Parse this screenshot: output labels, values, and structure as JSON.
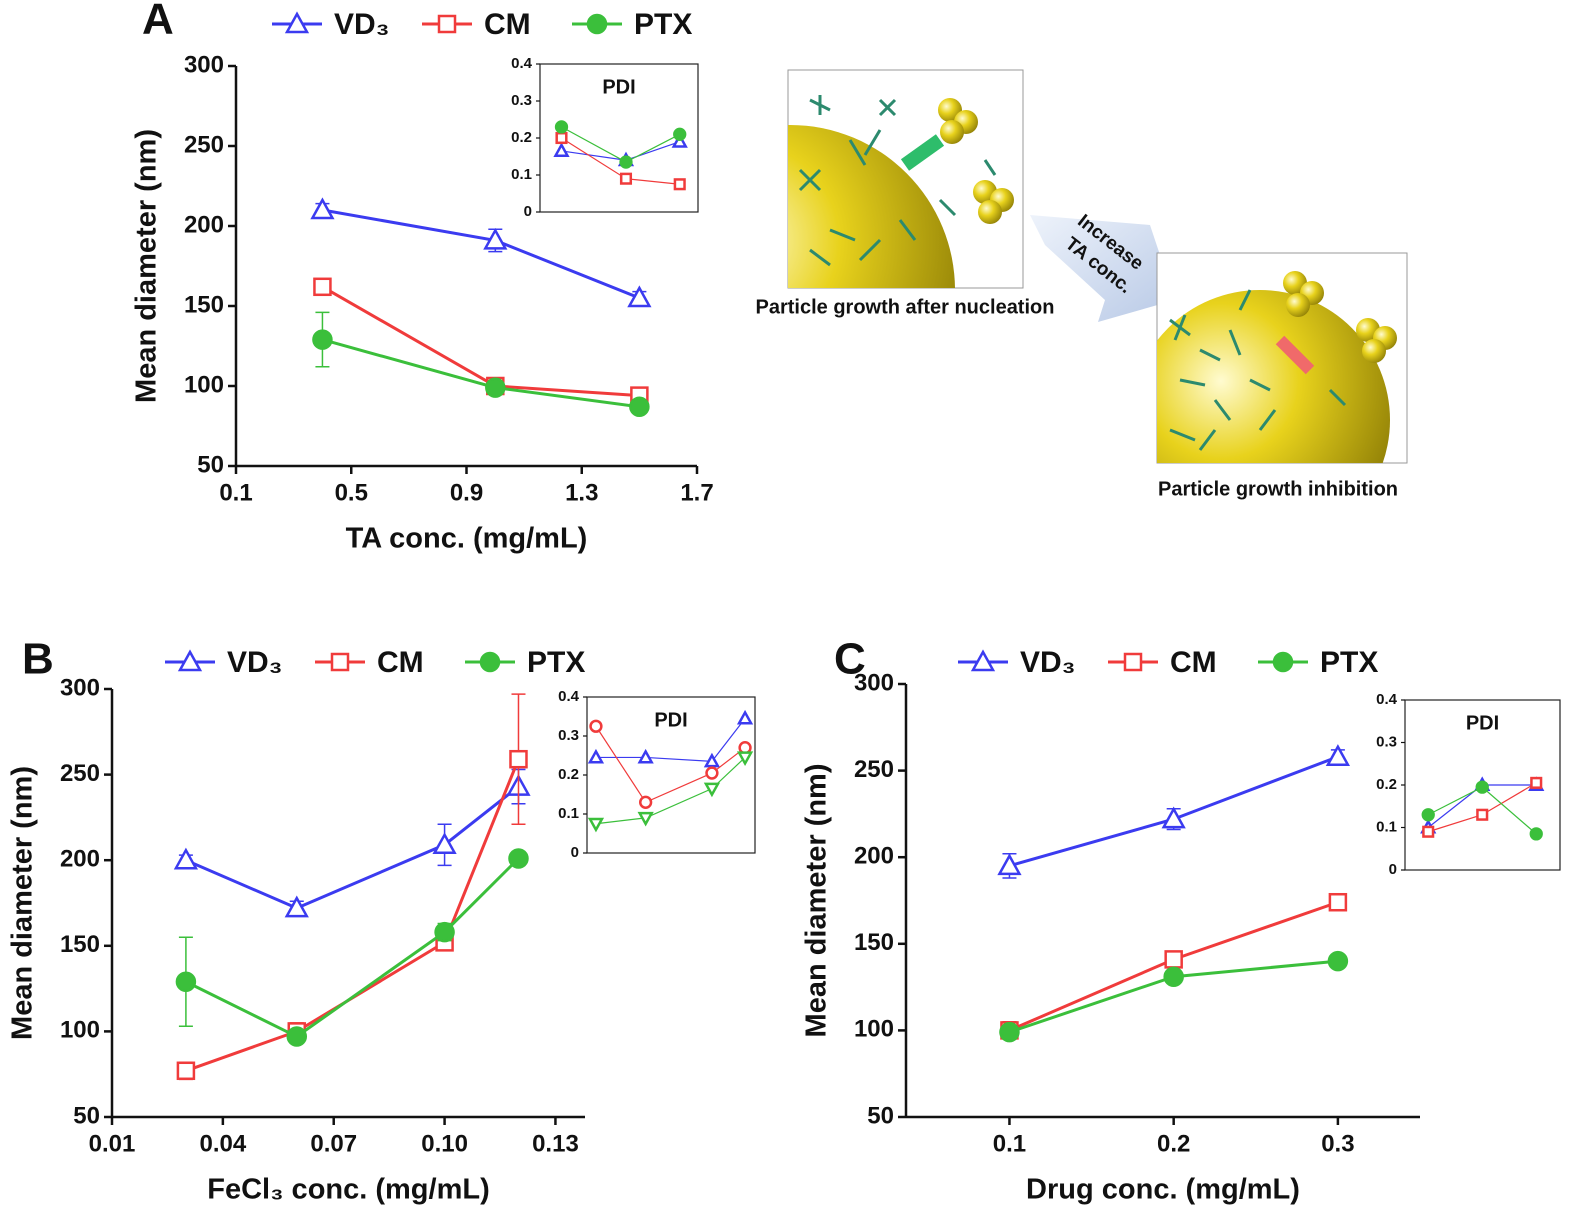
{
  "chart_data": [
    {
      "type": "line",
      "panel": "A",
      "xlabel": "TA conc. (mg/mL)",
      "ylabel": "Mean diameter (nm)",
      "x": [
        0.4,
        1.0,
        1.5
      ],
      "xlim": [
        0.1,
        1.7
      ],
      "xticks": [
        0.1,
        0.5,
        0.9,
        1.3,
        1.7
      ],
      "ylim": [
        50,
        300
      ],
      "yticks": [
        50,
        100,
        150,
        200,
        250,
        300
      ],
      "series": [
        {
          "name": "VD₃",
          "color": "#3b3bf0",
          "marker": "triangle-up",
          "filled": false,
          "values": [
            210,
            191,
            155
          ],
          "errors": [
            4,
            7,
            4
          ]
        },
        {
          "name": "CM",
          "color": "#f03b3b",
          "marker": "square",
          "filled": false,
          "values": [
            162,
            100,
            94
          ],
          "errors": [
            4,
            5,
            3
          ]
        },
        {
          "name": "PTX",
          "color": "#3bbf3b",
          "marker": "circle",
          "filled": true,
          "values": [
            129,
            99,
            87
          ],
          "errors": [
            17,
            3,
            3
          ]
        }
      ]
    },
    {
      "type": "line",
      "title": "PDI",
      "x": [
        0.4,
        1.0,
        1.5
      ],
      "xlim": [
        0.2,
        1.67
      ],
      "ylim": [
        0,
        0.4
      ],
      "yticks": [
        0,
        0.1,
        0.2,
        0.3,
        0.4
      ],
      "series": [
        {
          "color": "#3b3bf0",
          "marker": "triangle-up",
          "filled": false,
          "values": [
            0.165,
            0.14,
            0.19
          ]
        },
        {
          "color": "#f03b3b",
          "marker": "square",
          "filled": false,
          "values": [
            0.2,
            0.09,
            0.075
          ]
        },
        {
          "color": "#3bbf3b",
          "marker": "circle",
          "filled": true,
          "values": [
            0.23,
            0.135,
            0.21
          ]
        }
      ]
    },
    {
      "type": "line",
      "panel": "B",
      "xlabel": "FeCl₃ conc. (mg/mL)",
      "ylabel": "Mean diameter (nm)",
      "x": [
        0.03,
        0.06,
        0.1,
        0.12
      ],
      "xlim": [
        0.01,
        0.138
      ],
      "xticks": [
        {
          "value": 0.01,
          "label": "0.01"
        },
        {
          "value": 0.04,
          "label": "0.04"
        },
        {
          "value": 0.07,
          "label": "0.07"
        },
        {
          "value": 0.1,
          "label": "0.10"
        },
        {
          "value": 0.13,
          "label": "0.13"
        }
      ],
      "ylim": [
        50,
        300
      ],
      "yticks": [
        50,
        100,
        150,
        200,
        250,
        300
      ],
      "series": [
        {
          "name": "VD₃",
          "color": "#3b3bf0",
          "marker": "triangle-up",
          "filled": false,
          "values": [
            200,
            172,
            209,
            243
          ],
          "errors": [
            3,
            4,
            12,
            10
          ]
        },
        {
          "name": "CM",
          "color": "#f03b3b",
          "marker": "square",
          "filled": false,
          "values": [
            77,
            100,
            152,
            259
          ],
          "errors": [
            5,
            5,
            3,
            38
          ]
        },
        {
          "name": "PTX",
          "color": "#3bbf3b",
          "marker": "circle",
          "filled": true,
          "values": [
            129,
            97,
            158,
            201
          ],
          "errors": [
            26,
            3,
            5,
            4
          ]
        }
      ]
    },
    {
      "type": "line",
      "title": "PDI",
      "x": [
        0.03,
        0.06,
        0.1,
        0.12
      ],
      "xlim": [
        0.0246,
        0.126
      ],
      "ylim": [
        0,
        0.4
      ],
      "yticks": [
        0,
        0.1,
        0.2,
        0.3,
        0.4
      ],
      "series": [
        {
          "color": "#3b3bf0",
          "marker": "triangle-up",
          "filled": false,
          "values": [
            0.245,
            0.245,
            0.235,
            0.345
          ]
        },
        {
          "color": "#f03b3b",
          "marker": "circle",
          "filled": false,
          "values": [
            0.325,
            0.13,
            0.205,
            0.27
          ]
        },
        {
          "color": "#3bbf3b",
          "marker": "triangle-down",
          "filled": false,
          "values": [
            0.075,
            0.09,
            0.165,
            0.245
          ]
        }
      ]
    },
    {
      "type": "line",
      "panel": "C",
      "xlabel": "Drug conc. (mg/mL)",
      "ylabel": "Mean diameter (nm)",
      "x": [
        0.1,
        0.2,
        0.3
      ],
      "xlim": [
        0.037,
        0.35
      ],
      "xticks": [
        0.1,
        0.2,
        0.3
      ],
      "ylim": [
        50,
        300
      ],
      "yticks": [
        50,
        100,
        150,
        200,
        250,
        300
      ],
      "series": [
        {
          "name": "VD₃",
          "color": "#3b3bf0",
          "marker": "triangle-up",
          "filled": false,
          "values": [
            195,
            222,
            258
          ],
          "errors": [
            7,
            6,
            4
          ]
        },
        {
          "name": "CM",
          "color": "#f03b3b",
          "marker": "square",
          "filled": false,
          "values": [
            100,
            141,
            174
          ],
          "errors": [
            5,
            3,
            2
          ]
        },
        {
          "name": "PTX",
          "color": "#3bbf3b",
          "marker": "circle",
          "filled": true,
          "values": [
            99,
            131,
            140
          ],
          "errors": [
            3,
            3,
            2
          ]
        }
      ]
    },
    {
      "type": "line",
      "title": "PDI",
      "x": [
        0.1,
        0.2,
        0.3
      ],
      "xlim": [
        0.057,
        0.344
      ],
      "ylim": [
        0,
        0.4
      ],
      "yticks": [
        0,
        0.1,
        0.2,
        0.3,
        0.4
      ],
      "series": [
        {
          "color": "#3b3bf0",
          "marker": "triangle-up",
          "filled": false,
          "values": [
            0.1,
            0.2,
            0.2
          ]
        },
        {
          "color": "#f03b3b",
          "marker": "square",
          "filled": false,
          "values": [
            0.09,
            0.13,
            0.205
          ]
        },
        {
          "color": "#3bbf3b",
          "marker": "circle",
          "filled": true,
          "values": [
            0.13,
            0.195,
            0.085
          ]
        }
      ]
    }
  ],
  "illustration": {
    "arrow_label": [
      "Increase",
      "TA conc."
    ],
    "caption_top": "Particle growth after nucleation",
    "caption_bottom": "Particle growth inhibition"
  }
}
